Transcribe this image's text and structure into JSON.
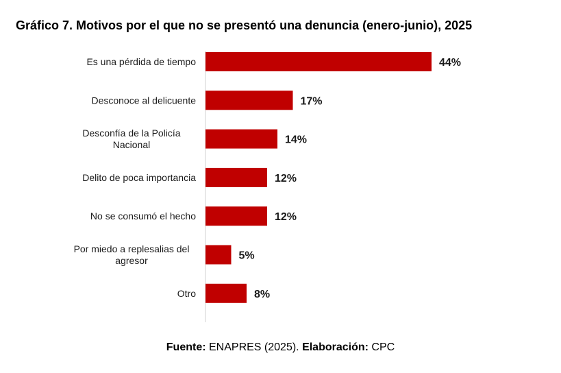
{
  "chart_data": {
    "type": "bar",
    "orientation": "horizontal",
    "title": "Gráfico 7. Motivos por el que no se presentó una denuncia (enero-junio), 2025",
    "categories": [
      "Es una pérdida de tiempo",
      "Desconoce al delicuente",
      "Desconfía de la Policía Nacional",
      "Delito de poca importancia",
      "No se consumó el hecho",
      "Por miedo a replesalias del agresor",
      "Otro"
    ],
    "category_lines": [
      [
        "Es una pérdida de tiempo"
      ],
      [
        "Desconoce al delicuente"
      ],
      [
        "Desconfía de la Policía",
        "Nacional"
      ],
      [
        "Delito de poca importancia"
      ],
      [
        "No se consumó el hecho"
      ],
      [
        "Por miedo a replesalias del",
        "agresor"
      ],
      [
        "Otro"
      ]
    ],
    "values": [
      44,
      17,
      14,
      12,
      12,
      5,
      8
    ],
    "value_labels": [
      "44%",
      "17%",
      "14%",
      "12%",
      "12%",
      "5%",
      "8%"
    ],
    "unit": "%",
    "xlim": [
      0,
      50
    ],
    "grid": false,
    "legend": "none",
    "bar_color": "#C00000"
  },
  "source": {
    "fuente_label": "Fuente:",
    "fuente_text": " ENAPRES (2025). ",
    "elaboracion_label": "Elaboración:",
    "elaboracion_text": " CPC"
  }
}
